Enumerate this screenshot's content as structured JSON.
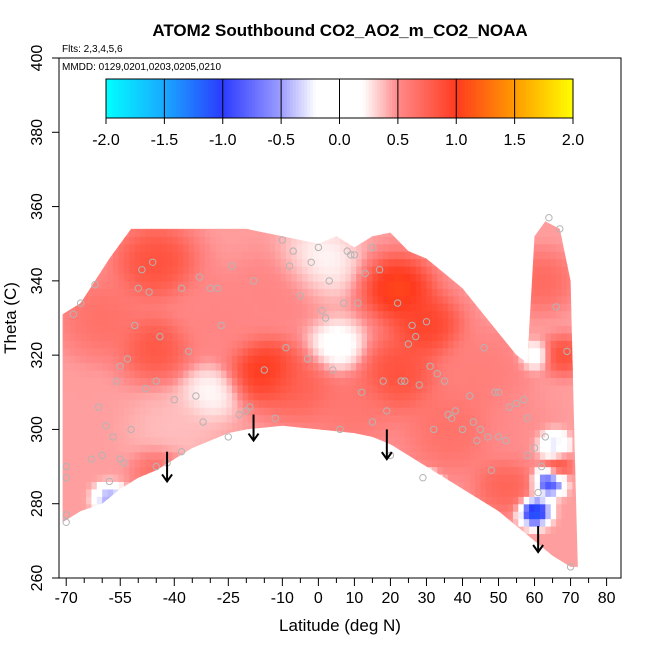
{
  "chart_data": {
    "type": "heatmap",
    "title": "ATOM2 Southbound CO2_AO2_m_CO2_NOAA",
    "flights_label": "Flts: 2,3,4,5,6",
    "mmdd_label": "MMDD: 0129,0201,0203,0205,0210",
    "xlabel": "Latitude (deg N)",
    "ylabel": "Theta (C)",
    "xlim": [
      -72,
      84
    ],
    "ylim": [
      260,
      400
    ],
    "xticks": [
      -70,
      -55,
      -40,
      -25,
      -10,
      0,
      10,
      20,
      30,
      40,
      50,
      60,
      70,
      80
    ],
    "xtick_labels": [
      "-70",
      "-55",
      "-40",
      "-25",
      "-10",
      "0",
      "10",
      "20",
      "30",
      "40",
      "50",
      "60",
      "70",
      "80"
    ],
    "xminor_ticks": [
      -65,
      -60,
      -50,
      -45,
      -35,
      -30,
      -20,
      -15,
      -5,
      5,
      15,
      25,
      35,
      45,
      55,
      65,
      75
    ],
    "yticks": [
      260,
      280,
      300,
      320,
      340,
      360,
      380,
      400
    ],
    "ytick_labels": [
      "260",
      "280",
      "300",
      "320",
      "340",
      "360",
      "380",
      "400"
    ],
    "colorbar": {
      "range": [
        -2.0,
        2.0
      ],
      "ticks": [
        -2.0,
        -1.5,
        -1.0,
        -0.5,
        0.0,
        0.5,
        1.0,
        1.5,
        2.0
      ],
      "tick_labels": [
        "-2.0",
        "-1.5",
        "-1.0",
        "-0.5",
        "0.0",
        "0.5",
        "1.0",
        "1.5",
        "2.0"
      ],
      "stops": [
        {
          "v": -2.0,
          "color": "#00ffff"
        },
        {
          "v": -1.5,
          "color": "#19a9ff"
        },
        {
          "v": -1.0,
          "color": "#2b3bff"
        },
        {
          "v": -0.5,
          "color": "#9d9dff"
        },
        {
          "v": -0.2,
          "color": "#ffffff"
        },
        {
          "v": 0.2,
          "color": "#ffffff"
        },
        {
          "v": 0.5,
          "color": "#ff8a8a"
        },
        {
          "v": 1.0,
          "color": "#ff3b1f"
        },
        {
          "v": 1.5,
          "color": "#ff9a00"
        },
        {
          "v": 2.0,
          "color": "#ffff00"
        }
      ]
    },
    "lower_boundary": [
      {
        "lat": -71,
        "theta": 275
      },
      {
        "lat": -66,
        "theta": 278
      },
      {
        "lat": -60,
        "theta": 280
      },
      {
        "lat": -55,
        "theta": 284
      },
      {
        "lat": -50,
        "theta": 287
      },
      {
        "lat": -45,
        "theta": 289
      },
      {
        "lat": -40,
        "theta": 292
      },
      {
        "lat": -35,
        "theta": 295
      },
      {
        "lat": -30,
        "theta": 297
      },
      {
        "lat": -25,
        "theta": 299
      },
      {
        "lat": -20,
        "theta": 300
      },
      {
        "lat": -15,
        "theta": 300.5
      },
      {
        "lat": -10,
        "theta": 301
      },
      {
        "lat": -5,
        "theta": 300.5
      },
      {
        "lat": 0,
        "theta": 300
      },
      {
        "lat": 5,
        "theta": 299.5
      },
      {
        "lat": 10,
        "theta": 299
      },
      {
        "lat": 15,
        "theta": 298
      },
      {
        "lat": 20,
        "theta": 296
      },
      {
        "lat": 25,
        "theta": 293
      },
      {
        "lat": 30,
        "theta": 290
      },
      {
        "lat": 35,
        "theta": 287
      },
      {
        "lat": 40,
        "theta": 284
      },
      {
        "lat": 45,
        "theta": 281
      },
      {
        "lat": 50,
        "theta": 278
      },
      {
        "lat": 55,
        "theta": 274
      },
      {
        "lat": 60,
        "theta": 270
      },
      {
        "lat": 65,
        "theta": 266
      },
      {
        "lat": 70,
        "theta": 263
      },
      {
        "lat": 72,
        "theta": 263
      }
    ],
    "upper_boundary": [
      {
        "lat": -71,
        "theta": 331
      },
      {
        "lat": -66,
        "theta": 334
      },
      {
        "lat": -62,
        "theta": 340
      },
      {
        "lat": -58,
        "theta": 346
      },
      {
        "lat": -55,
        "theta": 350
      },
      {
        "lat": -52,
        "theta": 354
      },
      {
        "lat": -40,
        "theta": 354
      },
      {
        "lat": -20,
        "theta": 354
      },
      {
        "lat": -10,
        "theta": 352
      },
      {
        "lat": 0,
        "theta": 350
      },
      {
        "lat": 5,
        "theta": 352
      },
      {
        "lat": 10,
        "theta": 349
      },
      {
        "lat": 15,
        "theta": 352
      },
      {
        "lat": 20,
        "theta": 353
      },
      {
        "lat": 25,
        "theta": 348
      },
      {
        "lat": 30,
        "theta": 346
      },
      {
        "lat": 35,
        "theta": 342
      },
      {
        "lat": 40,
        "theta": 338
      },
      {
        "lat": 45,
        "theta": 332
      },
      {
        "lat": 50,
        "theta": 326
      },
      {
        "lat": 55,
        "theta": 320
      },
      {
        "lat": 58,
        "theta": 318
      },
      {
        "lat": 60,
        "theta": 352
      },
      {
        "lat": 63,
        "theta": 356
      },
      {
        "lat": 67,
        "theta": 354
      },
      {
        "lat": 70,
        "theta": 340
      },
      {
        "lat": 71,
        "theta": 300
      },
      {
        "lat": 72,
        "theta": 263
      }
    ],
    "anomaly_sources": [
      {
        "lat": -60,
        "theta": 330,
        "value": 0.7,
        "radius": 8
      },
      {
        "lat": -45,
        "theta": 345,
        "value": 0.95,
        "radius": 8
      },
      {
        "lat": -45,
        "theta": 322,
        "value": 0.9,
        "radius": 7
      },
      {
        "lat": -40,
        "theta": 300,
        "value": 0.35,
        "radius": 9
      },
      {
        "lat": -44,
        "theta": 289,
        "value": 0.75,
        "radius": 5
      },
      {
        "lat": -28,
        "theta": 330,
        "value": 0.55,
        "radius": 10
      },
      {
        "lat": -15,
        "theta": 316,
        "value": 1.15,
        "radius": 7
      },
      {
        "lat": -5,
        "theta": 312,
        "value": 0.8,
        "radius": 8
      },
      {
        "lat": -10,
        "theta": 338,
        "value": 0.55,
        "radius": 9
      },
      {
        "lat": 10,
        "theta": 306,
        "value": 0.65,
        "radius": 8
      },
      {
        "lat": 22,
        "theta": 338,
        "value": 1.2,
        "radius": 7
      },
      {
        "lat": 30,
        "theta": 328,
        "value": 1.05,
        "radius": 7
      },
      {
        "lat": 22,
        "theta": 315,
        "value": 0.95,
        "radius": 8
      },
      {
        "lat": 37,
        "theta": 300,
        "value": 0.7,
        "radius": 9
      },
      {
        "lat": 45,
        "theta": 315,
        "value": 0.6,
        "radius": 9
      },
      {
        "lat": 55,
        "theta": 300,
        "value": 0.5,
        "radius": 8
      },
      {
        "lat": 52,
        "theta": 285,
        "value": 0.8,
        "radius": 6
      },
      {
        "lat": 68,
        "theta": 320,
        "value": 0.95,
        "radius": 4
      },
      {
        "lat": 66,
        "theta": 290,
        "value": 0.95,
        "radius": 3
      },
      {
        "lat": 62,
        "theta": 340,
        "value": 0.75,
        "radius": 6
      },
      {
        "lat": 0,
        "theta": 345,
        "value": 0.15,
        "radius": 8
      },
      {
        "lat": 5,
        "theta": 322,
        "value": 0.05,
        "radius": 6
      },
      {
        "lat": -30,
        "theta": 310,
        "value": 0.15,
        "radius": 6
      },
      {
        "lat": 60,
        "theta": 320,
        "value": 0.05,
        "radius": 3
      },
      {
        "lat": 30,
        "theta": 285,
        "value": -0.4,
        "radius": 3
      },
      {
        "lat": -58,
        "theta": 281.5,
        "value": -0.7,
        "radius": 3
      },
      {
        "lat": 60,
        "theta": 278,
        "value": -1.6,
        "radius": 3
      },
      {
        "lat": 64,
        "theta": 286,
        "value": -1.3,
        "radius": 3
      },
      {
        "lat": 65,
        "theta": 296,
        "value": -0.6,
        "radius": 3
      }
    ],
    "observations": [
      {
        "lat": -70,
        "theta": 290
      },
      {
        "lat": -70,
        "theta": 287
      },
      {
        "lat": -70,
        "theta": 277
      },
      {
        "lat": -70,
        "theta": 275
      },
      {
        "lat": -68,
        "theta": 331
      },
      {
        "lat": -66,
        "theta": 334
      },
      {
        "lat": -62,
        "theta": 339
      },
      {
        "lat": -61,
        "theta": 306
      },
      {
        "lat": -60,
        "theta": 293
      },
      {
        "lat": -59,
        "theta": 301
      },
      {
        "lat": -58,
        "theta": 286
      },
      {
        "lat": -57,
        "theta": 298
      },
      {
        "lat": -56,
        "theta": 313
      },
      {
        "lat": -55,
        "theta": 292
      },
      {
        "lat": -54,
        "theta": 291
      },
      {
        "lat": -55,
        "theta": 317
      },
      {
        "lat": -53,
        "theta": 319
      },
      {
        "lat": -52,
        "theta": 300
      },
      {
        "lat": -51,
        "theta": 328
      },
      {
        "lat": -50,
        "theta": 338
      },
      {
        "lat": -49,
        "theta": 343
      },
      {
        "lat": -48,
        "theta": 311
      },
      {
        "lat": -47,
        "theta": 337
      },
      {
        "lat": -46,
        "theta": 345
      },
      {
        "lat": -45,
        "theta": 290
      },
      {
        "lat": -45,
        "theta": 313
      },
      {
        "lat": -44,
        "theta": 325
      },
      {
        "lat": -42,
        "theta": 291
      },
      {
        "lat": -40,
        "theta": 308
      },
      {
        "lat": -38,
        "theta": 338
      },
      {
        "lat": -36,
        "theta": 321
      },
      {
        "lat": -34,
        "theta": 309
      },
      {
        "lat": -33,
        "theta": 341
      },
      {
        "lat": -32,
        "theta": 302
      },
      {
        "lat": -30,
        "theta": 338
      },
      {
        "lat": -28,
        "theta": 338
      },
      {
        "lat": -27,
        "theta": 328
      },
      {
        "lat": -25,
        "theta": 298
      },
      {
        "lat": -24,
        "theta": 344
      },
      {
        "lat": -22,
        "theta": 304
      },
      {
        "lat": -19,
        "theta": 306
      },
      {
        "lat": -18,
        "theta": 340
      },
      {
        "lat": -15,
        "theta": 316
      },
      {
        "lat": -12,
        "theta": 303
      },
      {
        "lat": -10,
        "theta": 351
      },
      {
        "lat": -9,
        "theta": 322
      },
      {
        "lat": -8,
        "theta": 344
      },
      {
        "lat": -7,
        "theta": 348
      },
      {
        "lat": -5,
        "theta": 336
      },
      {
        "lat": -3,
        "theta": 319
      },
      {
        "lat": -2,
        "theta": 345
      },
      {
        "lat": 0,
        "theta": 349
      },
      {
        "lat": 1,
        "theta": 332
      },
      {
        "lat": 2,
        "theta": 330
      },
      {
        "lat": 3,
        "theta": 340
      },
      {
        "lat": 4,
        "theta": 316
      },
      {
        "lat": 6,
        "theta": 300
      },
      {
        "lat": 7,
        "theta": 334
      },
      {
        "lat": 8,
        "theta": 348
      },
      {
        "lat": 9,
        "theta": 347
      },
      {
        "lat": 10,
        "theta": 347
      },
      {
        "lat": 11,
        "theta": 334
      },
      {
        "lat": 12,
        "theta": 310
      },
      {
        "lat": 13,
        "theta": 342
      },
      {
        "lat": 15,
        "theta": 349
      },
      {
        "lat": 17,
        "theta": 343
      },
      {
        "lat": 18,
        "theta": 313
      },
      {
        "lat": 19,
        "theta": 305
      },
      {
        "lat": 20,
        "theta": 293
      },
      {
        "lat": 22,
        "theta": 334
      },
      {
        "lat": 23,
        "theta": 313
      },
      {
        "lat": 24,
        "theta": 313
      },
      {
        "lat": 25,
        "theta": 323
      },
      {
        "lat": 26,
        "theta": 328
      },
      {
        "lat": 27,
        "theta": 325
      },
      {
        "lat": 28,
        "theta": 312
      },
      {
        "lat": 29,
        "theta": 287
      },
      {
        "lat": 30,
        "theta": 329
      },
      {
        "lat": 31,
        "theta": 317
      },
      {
        "lat": 32,
        "theta": 300
      },
      {
        "lat": 33,
        "theta": 315
      },
      {
        "lat": 35,
        "theta": 313
      },
      {
        "lat": 36,
        "theta": 304
      },
      {
        "lat": 38,
        "theta": 305
      },
      {
        "lat": 40,
        "theta": 300
      },
      {
        "lat": 42,
        "theta": 309
      },
      {
        "lat": 44,
        "theta": 297
      },
      {
        "lat": 45,
        "theta": 300
      },
      {
        "lat": 46,
        "theta": 322
      },
      {
        "lat": 47,
        "theta": 298
      },
      {
        "lat": 48,
        "theta": 289
      },
      {
        "lat": 49,
        "theta": 310
      },
      {
        "lat": 50,
        "theta": 298
      },
      {
        "lat": 52,
        "theta": 297
      },
      {
        "lat": 53,
        "theta": 306
      },
      {
        "lat": 55,
        "theta": 307
      },
      {
        "lat": 57,
        "theta": 308
      },
      {
        "lat": 58,
        "theta": 303
      },
      {
        "lat": 60,
        "theta": 295
      },
      {
        "lat": 61,
        "theta": 283
      },
      {
        "lat": 62,
        "theta": 290
      },
      {
        "lat": 64,
        "theta": 357
      },
      {
        "lat": 67,
        "theta": 354
      },
      {
        "lat": 66,
        "theta": 333
      },
      {
        "lat": 69,
        "theta": 321
      },
      {
        "lat": 70,
        "theta": 263
      },
      {
        "lat": -38,
        "theta": 294
      },
      {
        "lat": -20,
        "theta": 305
      },
      {
        "lat": 15,
        "theta": 302
      },
      {
        "lat": 37,
        "theta": 303
      },
      {
        "lat": 43,
        "theta": 302
      },
      {
        "lat": 50,
        "theta": 310
      },
      {
        "lat": 58,
        "theta": 293
      },
      {
        "lat": 63,
        "theta": 298
      },
      {
        "lat": -63,
        "theta": 292
      }
    ],
    "arrows": [
      {
        "lat": -42,
        "theta_top": 294,
        "theta_tip": 286
      },
      {
        "lat": -18,
        "theta_top": 304,
        "theta_tip": 297
      },
      {
        "lat": 19,
        "theta_top": 300,
        "theta_tip": 292
      },
      {
        "lat": 61,
        "theta_top": 274,
        "theta_tip": 267
      }
    ]
  }
}
